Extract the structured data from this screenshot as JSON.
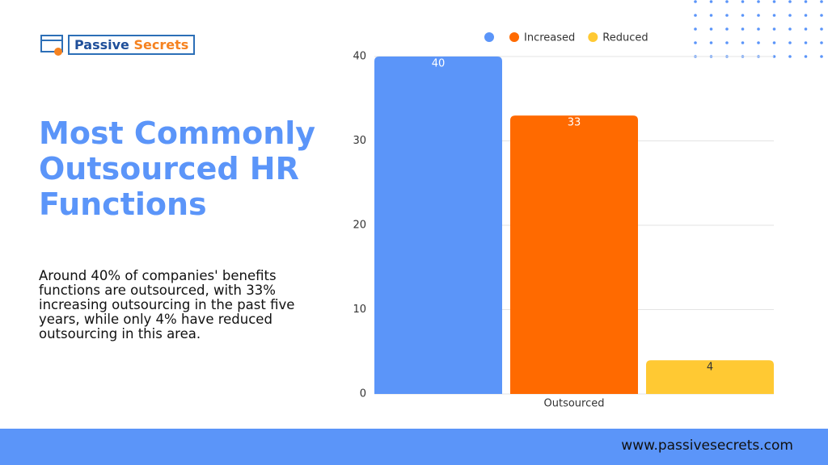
{
  "logo": {
    "first": "Passive",
    "second": "Secrets"
  },
  "heading": "Most Commonly Outsourced HR Functions",
  "description": "Around 40% of companies' benefits functions are outsourced, with 33% increasing outsourcing in the past five years, while only 4% have reduced outsourcing in this area.",
  "footer": {
    "url": "www.passivesecrets.com"
  },
  "chart_data": {
    "type": "bar",
    "categories": [
      "Outsourced"
    ],
    "series": [
      {
        "color": "#5b95f9",
        "values": [
          40
        ]
      },
      {
        "name": "Increased",
        "color": "#ff6a00",
        "values": [
          33
        ]
      },
      {
        "name": "Reduced",
        "color": "#ffc933",
        "values": [
          4
        ]
      }
    ],
    "ylim": [
      0,
      40
    ],
    "yticks": [
      0,
      10,
      20,
      30,
      40
    ],
    "grid": true
  }
}
